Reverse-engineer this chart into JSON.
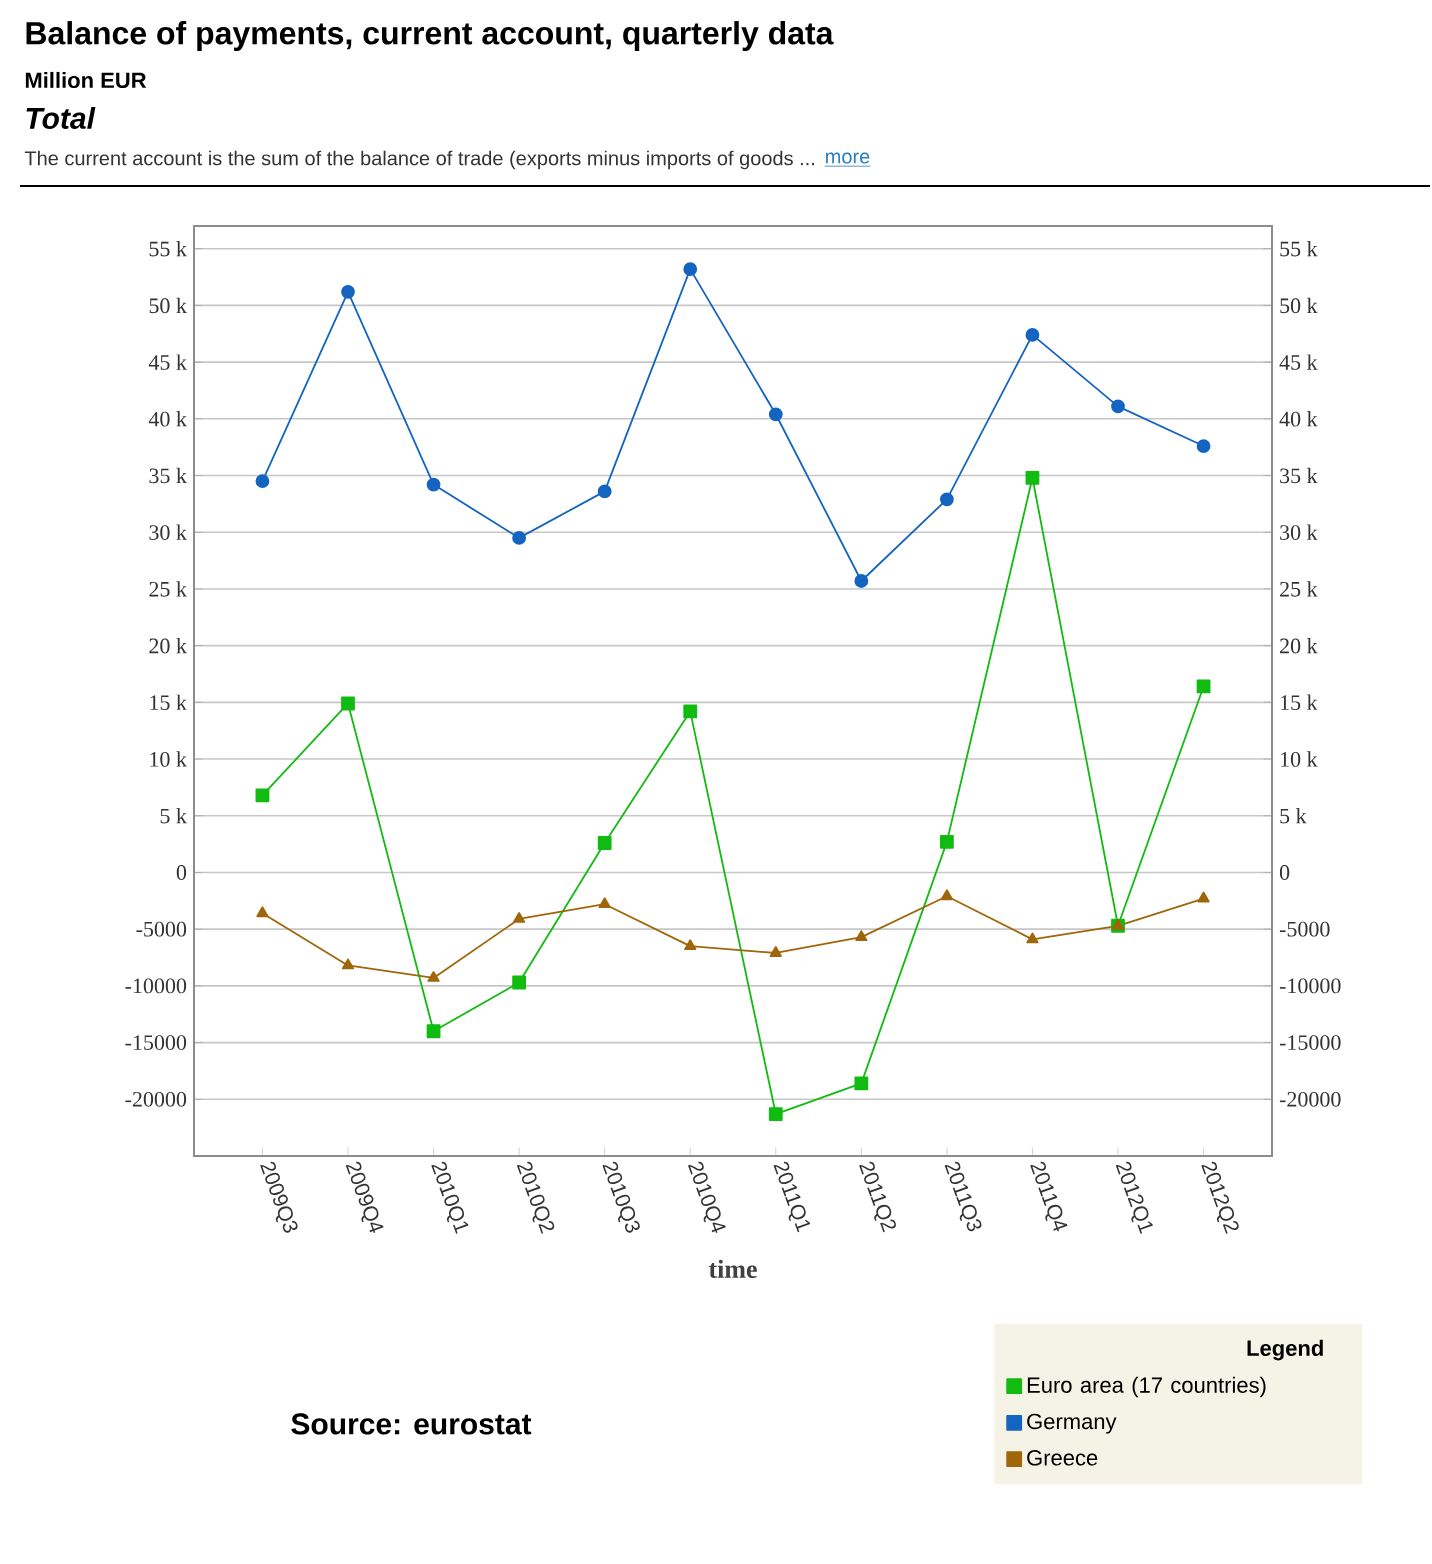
{
  "chart_data": {
    "type": "line",
    "title": "Balance of payments, current account, quarterly data",
    "subtitle": "Million EUR",
    "annotations": [
      "Total",
      "The current account is the sum of the balance of trade (exports minus imports of goods ...",
      "more",
      "Source: eurostat"
    ],
    "xlabel": "time",
    "legend_title": "Legend",
    "legend": "bottom right",
    "grid": "y",
    "line_style": "solid",
    "categories": [
      "2009Q3",
      "2009Q4",
      "2010Q1",
      "2010Q2",
      "2010Q3",
      "2010Q4",
      "2011Q1",
      "2011Q2",
      "2011Q3",
      "2011Q4",
      "2012Q1",
      "2012Q2"
    ],
    "series": [
      {
        "name": "Euro area (17 countries)",
        "color": "#11bb11",
        "marker": "square",
        "values": [
          6800,
          14900,
          -14000,
          -9700,
          2600,
          14200,
          -21300,
          -18600,
          2700,
          34800,
          -4700,
          16400
        ]
      },
      {
        "name": "Germany",
        "color": "#1464c0",
        "marker": "circle",
        "values": [
          34500,
          51200,
          34200,
          29500,
          33600,
          53200,
          40400,
          25700,
          32900,
          47400,
          41100,
          37600
        ]
      },
      {
        "name": "Greece",
        "color": "#a0660a",
        "marker": "triangle",
        "values": [
          -3600,
          -8200,
          -9300,
          -4100,
          -2800,
          -6500,
          -7100,
          -5700,
          -2100,
          -5900,
          -4700,
          -2300
        ]
      }
    ],
    "ylim": [
      -25000,
      57000
    ],
    "yticks": [
      -20000,
      -15000,
      -10000,
      -5000,
      0,
      {
        "value": 5000,
        "label": "5 k"
      },
      {
        "value": 10000,
        "label": "10 k"
      },
      {
        "value": 15000,
        "label": "15 k"
      },
      {
        "value": 20000,
        "label": "20 k"
      },
      {
        "value": 25000,
        "label": "25 k"
      },
      {
        "value": 30000,
        "label": "30 k"
      },
      {
        "value": 35000,
        "label": "35 k"
      },
      {
        "value": 40000,
        "label": "40 k"
      },
      {
        "value": 45000,
        "label": "45 k"
      },
      {
        "value": 50000,
        "label": "50 k"
      },
      {
        "value": 55000,
        "label": "55 k"
      }
    ],
    "y2lim": [
      -25000,
      57000
    ],
    "y2ticks": [
      -20000,
      -15000,
      -10000,
      -5000,
      0,
      {
        "value": 5000,
        "label": "5 k"
      },
      {
        "value": 10000,
        "label": "10 k"
      },
      {
        "value": 15000,
        "label": "15 k"
      },
      {
        "value": 20000,
        "label": "20 k"
      },
      {
        "value": 25000,
        "label": "25 k"
      },
      {
        "value": 30000,
        "label": "30 k"
      },
      {
        "value": 35000,
        "label": "35 k"
      },
      {
        "value": 40000,
        "label": "40 k"
      },
      {
        "value": 45000,
        "label": "45 k"
      },
      {
        "value": 50000,
        "label": "50 k"
      },
      {
        "value": 55000,
        "label": "55 k"
      }
    ]
  }
}
